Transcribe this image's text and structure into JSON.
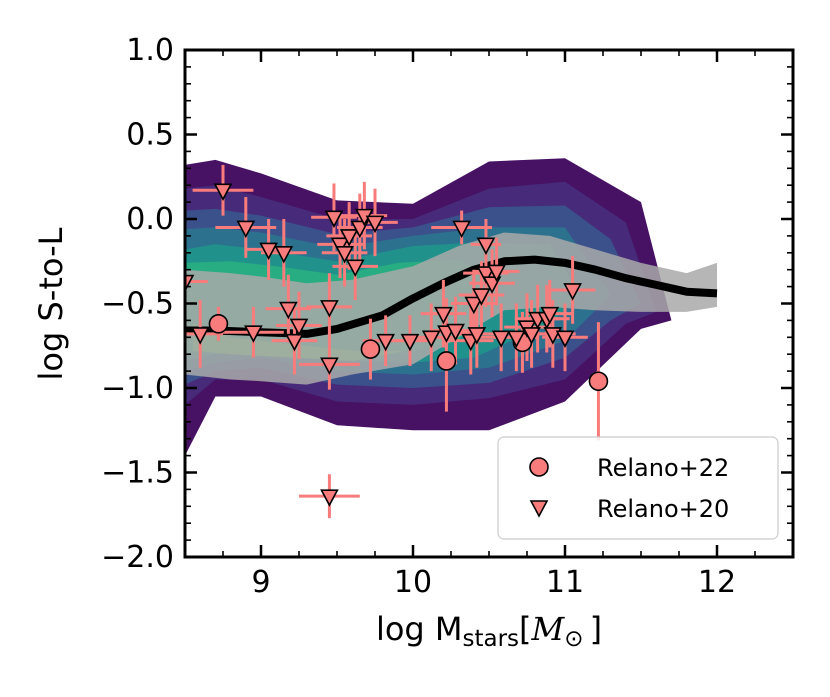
{
  "chart_data": {
    "type": "scatter",
    "title": "",
    "xlabel": {
      "main": "log M",
      "sub": "stars",
      "unit_open": "[",
      "unit_symbol": "M",
      "unit_sub": "⊙",
      "unit_close": "]"
    },
    "ylabel": "log S-to-L",
    "xlim": [
      8.5,
      12.5
    ],
    "ylim": [
      -2.0,
      1.0
    ],
    "x_ticks": [
      9,
      10,
      11,
      12
    ],
    "x_tick_labels": [
      "9",
      "10",
      "11",
      "12"
    ],
    "y_ticks": [
      -2.0,
      -1.5,
      -1.0,
      -0.5,
      0.0,
      0.5,
      1.0
    ],
    "y_tick_labels": [
      "−2.0",
      "−1.5",
      "−1.0",
      "−0.5",
      "0.0",
      "0.5",
      "1.0"
    ],
    "grid": false,
    "legend_position": "bottom-right",
    "colors": {
      "marker_fill": "#f87c7c",
      "errorbar": "#f87c7c",
      "median_line": "#000000",
      "scatter_band": "#a9a9a9",
      "density_levels": [
        "#471164",
        "#472b7a",
        "#3b518b",
        "#2c718e",
        "#21918c",
        "#27ad81",
        "#5cc863"
      ]
    },
    "density_contours": [
      {
        "level": 1,
        "x": [
          8.5,
          8.7,
          9.0,
          9.5,
          10.0,
          10.5,
          11.0,
          11.5,
          11.7
        ],
        "upper": [
          0.32,
          0.35,
          0.27,
          0.11,
          0.09,
          0.34,
          0.36,
          0.1,
          -0.6
        ],
        "lower": [
          -1.4,
          -1.05,
          -1.05,
          -1.22,
          -1.25,
          -1.25,
          -1.08,
          -0.65,
          -0.6
        ]
      },
      {
        "level": 2,
        "x": [
          8.5,
          8.7,
          9.0,
          9.5,
          10.0,
          10.5,
          11.0,
          11.4,
          11.6
        ],
        "upper": [
          0.18,
          0.2,
          0.13,
          0.0,
          0.0,
          0.18,
          0.22,
          -0.02,
          -0.55
        ],
        "lower": [
          -1.1,
          -0.95,
          -0.95,
          -1.08,
          -1.1,
          -1.06,
          -0.95,
          -0.62,
          -0.55
        ]
      },
      {
        "level": 3,
        "x": [
          8.5,
          8.7,
          9.0,
          9.5,
          10.0,
          10.5,
          11.0,
          11.3,
          11.5
        ],
        "upper": [
          0.05,
          0.06,
          0.02,
          -0.09,
          -0.05,
          0.07,
          0.08,
          -0.12,
          -0.5
        ],
        "lower": [
          -0.98,
          -0.9,
          -0.88,
          -0.98,
          -1.0,
          -0.97,
          -0.82,
          -0.6,
          -0.5
        ]
      },
      {
        "level": 4,
        "x": [
          8.5,
          8.7,
          9.0,
          9.5,
          10.0,
          10.5,
          11.0,
          11.3
        ],
        "upper": [
          -0.06,
          -0.05,
          -0.08,
          -0.17,
          -0.1,
          -0.05,
          -0.05,
          -0.45
        ],
        "lower": [
          -0.9,
          -0.85,
          -0.82,
          -0.9,
          -0.92,
          -0.88,
          -0.72,
          -0.45
        ]
      },
      {
        "level": 5,
        "x": [
          8.5,
          8.7,
          9.0,
          9.5,
          10.0,
          10.4,
          10.9,
          11.1
        ],
        "upper": [
          -0.18,
          -0.15,
          -0.18,
          -0.25,
          -0.16,
          -0.14,
          -0.15,
          -0.45
        ],
        "lower": [
          -0.84,
          -0.8,
          -0.78,
          -0.84,
          -0.85,
          -0.82,
          -0.62,
          -0.45
        ]
      },
      {
        "level": 6,
        "x": [
          8.5,
          8.8,
          9.1,
          9.5,
          9.9,
          10.3,
          10.6
        ],
        "upper": [
          -0.26,
          -0.25,
          -0.28,
          -0.33,
          -0.26,
          -0.24,
          -0.35
        ],
        "lower": [
          -0.8,
          -0.76,
          -0.75,
          -0.8,
          -0.8,
          -0.72,
          -0.35
        ]
      },
      {
        "level": 7,
        "x": [
          8.55,
          8.8,
          9.2,
          9.6,
          9.95
        ],
        "upper": [
          -0.62,
          -0.7,
          -0.74,
          -0.78,
          -0.78
        ],
        "lower": [
          -0.78,
          -0.8,
          -0.82,
          -0.84,
          -0.78
        ]
      }
    ],
    "scatter_band": {
      "x": [
        8.5,
        8.8,
        9.0,
        9.3,
        9.6,
        10.0,
        10.3,
        10.6,
        10.9,
        11.2,
        11.5,
        11.8,
        12.0
      ],
      "upper": [
        -0.3,
        -0.32,
        -0.34,
        -0.38,
        -0.36,
        -0.28,
        -0.16,
        -0.08,
        -0.1,
        -0.18,
        -0.26,
        -0.32,
        -0.26
      ],
      "lower": [
        -0.92,
        -0.95,
        -0.96,
        -0.98,
        -0.92,
        -0.86,
        -0.7,
        -0.54,
        -0.52,
        -0.54,
        -0.55,
        -0.55,
        -0.52
      ]
    },
    "median_line": {
      "x": [
        8.5,
        8.7,
        9.0,
        9.3,
        9.5,
        9.8,
        10.0,
        10.2,
        10.4,
        10.6,
        10.8,
        11.0,
        11.2,
        11.4,
        11.6,
        11.8,
        12.0
      ],
      "y": [
        -0.66,
        -0.66,
        -0.67,
        -0.68,
        -0.65,
        -0.57,
        -0.47,
        -0.38,
        -0.3,
        -0.25,
        -0.24,
        -0.26,
        -0.3,
        -0.35,
        -0.39,
        -0.43,
        -0.44
      ]
    },
    "series": [
      {
        "name": "Relano+22",
        "marker": "circle",
        "points": [
          {
            "x": 8.72,
            "y": -0.62,
            "xerr": 0.0,
            "yerr": 0.1
          },
          {
            "x": 9.72,
            "y": -0.77,
            "xerr": 0.0,
            "yerr": 0.18
          },
          {
            "x": 10.22,
            "y": -0.84,
            "xerr": 0.0,
            "yerr": 0.3
          },
          {
            "x": 10.72,
            "y": -0.73,
            "xerr": 0.0,
            "yerr": 0.18
          },
          {
            "x": 11.22,
            "y": -0.96,
            "xerr": 0.0,
            "yerr": 0.35
          }
        ]
      },
      {
        "name": "Relano+20",
        "marker": "triangle-down",
        "points": [
          {
            "x": 8.5,
            "y": -0.37,
            "xerr": 0.15,
            "yerr": 0.2
          },
          {
            "x": 8.75,
            "y": 0.17,
            "xerr": 0.2,
            "yerr": 0.15
          },
          {
            "x": 8.6,
            "y": -0.68,
            "xerr": 0.15,
            "yerr": 0.2
          },
          {
            "x": 8.9,
            "y": -0.05,
            "xerr": 0.2,
            "yerr": 0.18
          },
          {
            "x": 8.95,
            "y": -0.67,
            "xerr": 0.2,
            "yerr": 0.15
          },
          {
            "x": 9.05,
            "y": -0.18,
            "xerr": 0.15,
            "yerr": 0.18
          },
          {
            "x": 9.15,
            "y": -0.2,
            "xerr": 0.15,
            "yerr": 0.2
          },
          {
            "x": 9.18,
            "y": -0.53,
            "xerr": 0.15,
            "yerr": 0.2
          },
          {
            "x": 9.22,
            "y": -0.72,
            "xerr": 0.15,
            "yerr": 0.2
          },
          {
            "x": 9.25,
            "y": -0.63,
            "xerr": 0.15,
            "yerr": 0.2
          },
          {
            "x": 9.45,
            "y": -0.86,
            "xerr": 0.2,
            "yerr": 0.15
          },
          {
            "x": 9.45,
            "y": -0.52,
            "xerr": 0.15,
            "yerr": 0.2
          },
          {
            "x": 9.48,
            "y": 0.01,
            "xerr": 0.15,
            "yerr": 0.2
          },
          {
            "x": 9.52,
            "y": -0.15,
            "xerr": 0.15,
            "yerr": 0.2
          },
          {
            "x": 9.55,
            "y": -0.2,
            "xerr": 0.15,
            "yerr": 0.2
          },
          {
            "x": 9.58,
            "y": -0.1,
            "xerr": 0.15,
            "yerr": 0.2
          },
          {
            "x": 9.62,
            "y": -0.28,
            "xerr": 0.15,
            "yerr": 0.2
          },
          {
            "x": 9.65,
            "y": -0.05,
            "xerr": 0.15,
            "yerr": 0.2
          },
          {
            "x": 9.68,
            "y": 0.02,
            "xerr": 0.15,
            "yerr": 0.2
          },
          {
            "x": 9.75,
            "y": -0.02,
            "xerr": 0.15,
            "yerr": 0.2
          },
          {
            "x": 9.82,
            "y": -0.72,
            "xerr": 0.15,
            "yerr": 0.15
          },
          {
            "x": 9.98,
            "y": -0.72,
            "xerr": 0.15,
            "yerr": 0.15
          },
          {
            "x": 9.45,
            "y": -1.64,
            "xerr": 0.2,
            "yerr": 0.13
          },
          {
            "x": 10.12,
            "y": -0.7,
            "xerr": 0.15,
            "yerr": 0.2
          },
          {
            "x": 10.2,
            "y": -0.56,
            "xerr": 0.15,
            "yerr": 0.2
          },
          {
            "x": 10.22,
            "y": -0.67,
            "xerr": 0.15,
            "yerr": 0.2
          },
          {
            "x": 10.28,
            "y": -0.66,
            "xerr": 0.15,
            "yerr": 0.2
          },
          {
            "x": 10.32,
            "y": -0.05,
            "xerr": 0.2,
            "yerr": 0.1
          },
          {
            "x": 10.38,
            "y": -0.72,
            "xerr": 0.15,
            "yerr": 0.2
          },
          {
            "x": 10.4,
            "y": -0.5,
            "xerr": 0.15,
            "yerr": 0.2
          },
          {
            "x": 10.42,
            "y": -0.68,
            "xerr": 0.15,
            "yerr": 0.2
          },
          {
            "x": 10.45,
            "y": -0.45,
            "xerr": 0.15,
            "yerr": 0.2
          },
          {
            "x": 10.48,
            "y": -0.32,
            "xerr": 0.15,
            "yerr": 0.2
          },
          {
            "x": 10.48,
            "y": -0.15,
            "xerr": 0.1,
            "yerr": 0.15
          },
          {
            "x": 10.52,
            "y": -0.38,
            "xerr": 0.15,
            "yerr": 0.2
          },
          {
            "x": 10.55,
            "y": -0.31,
            "xerr": 0.15,
            "yerr": 0.2
          },
          {
            "x": 10.58,
            "y": -0.7,
            "xerr": 0.15,
            "yerr": 0.2
          },
          {
            "x": 10.68,
            "y": -0.7,
            "xerr": 0.15,
            "yerr": 0.2
          },
          {
            "x": 10.75,
            "y": -0.64,
            "xerr": 0.15,
            "yerr": 0.2
          },
          {
            "x": 10.78,
            "y": -0.68,
            "xerr": 0.15,
            "yerr": 0.2
          },
          {
            "x": 10.82,
            "y": -0.59,
            "xerr": 0.15,
            "yerr": 0.2
          },
          {
            "x": 10.88,
            "y": -0.59,
            "xerr": 0.15,
            "yerr": 0.2
          },
          {
            "x": 10.9,
            "y": -0.56,
            "xerr": 0.15,
            "yerr": 0.2
          },
          {
            "x": 10.92,
            "y": -0.68,
            "xerr": 0.15,
            "yerr": 0.2
          },
          {
            "x": 11.0,
            "y": -0.7,
            "xerr": 0.15,
            "yerr": 0.2
          },
          {
            "x": 11.05,
            "y": -0.42,
            "xerr": 0.15,
            "yerr": 0.2
          }
        ]
      }
    ]
  }
}
